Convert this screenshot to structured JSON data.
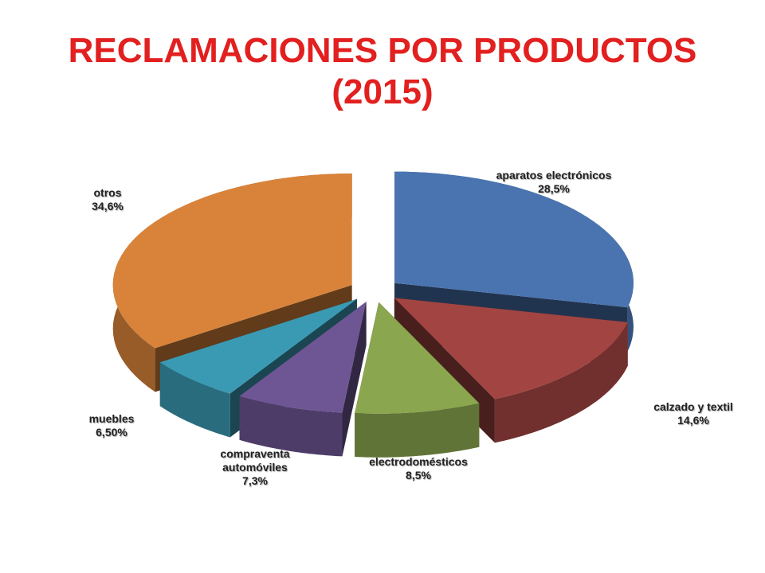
{
  "chart_data": {
    "type": "pie",
    "title": "RECLAMACIONES POR PRODUCTOS (2015)",
    "categories": [
      "aparatos electrónicos",
      "calzado y textil",
      "electrodomésticos",
      "compraventa automóviles",
      "muebles",
      "otros"
    ],
    "values": [
      28.5,
      14.6,
      8.5,
      7.3,
      6.5,
      34.6
    ],
    "value_labels": [
      "28,5%",
      "14,6%",
      "8,5%",
      "7,3%",
      "6,50%",
      "34,6%"
    ],
    "colors": [
      "#4a74b0",
      "#a24542",
      "#8aa64e",
      "#6e5694",
      "#3b9ab3",
      "#d9833a"
    ]
  }
}
